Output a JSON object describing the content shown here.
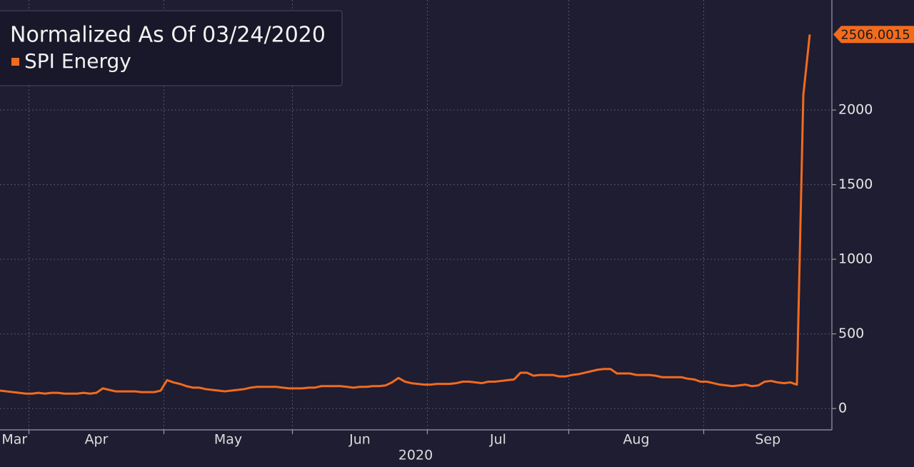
{
  "chart_data": {
    "type": "line",
    "legend_title": "Normalized As Of 03/24/2020",
    "xlabel": "2020",
    "categories": [
      "Mar",
      null,
      null,
      null,
      null,
      "Apr",
      null,
      null,
      null,
      null,
      null,
      null,
      null,
      null,
      null,
      null,
      null,
      null,
      null,
      null,
      null,
      null,
      null,
      null,
      null,
      null,
      "May",
      null,
      null,
      null,
      null,
      null,
      null,
      null,
      null,
      null,
      null,
      null,
      null,
      null,
      null,
      null,
      null,
      null,
      null,
      null,
      "Jun",
      null,
      null,
      null,
      null,
      null,
      null,
      null,
      null,
      null,
      null,
      null,
      null,
      null,
      null,
      null,
      null,
      null,
      null,
      null,
      null,
      "Jul",
      null,
      null,
      null,
      null,
      null,
      null,
      null,
      null,
      null,
      null,
      null,
      null,
      null,
      null,
      null,
      null,
      null,
      null,
      null,
      null,
      null,
      "Aug",
      null,
      null,
      null,
      null,
      null,
      null,
      null,
      null,
      null,
      null,
      null,
      null,
      null,
      null,
      null,
      null,
      null,
      null,
      null,
      null,
      "Sep",
      null,
      null,
      null,
      null,
      null,
      null,
      null,
      null,
      null,
      null,
      null,
      null,
      null,
      null,
      null,
      null
    ],
    "series": [
      {
        "name": "SPI Energy",
        "color": "#f26b1d",
        "values": [
          120,
          115,
          110,
          105,
          100,
          100,
          105,
          100,
          105,
          105,
          100,
          100,
          100,
          105,
          100,
          105,
          135,
          125,
          115,
          115,
          115,
          115,
          110,
          110,
          110,
          120,
          190,
          175,
          165,
          150,
          140,
          140,
          130,
          125,
          120,
          115,
          120,
          125,
          130,
          140,
          145,
          145,
          145,
          145,
          140,
          135,
          135,
          135,
          140,
          140,
          150,
          150,
          150,
          150,
          145,
          140,
          145,
          145,
          150,
          150,
          155,
          175,
          205,
          180,
          170,
          165,
          160,
          160,
          165,
          165,
          165,
          170,
          180,
          180,
          175,
          170,
          180,
          180,
          185,
          190,
          195,
          240,
          240,
          220,
          225,
          225,
          225,
          215,
          215,
          225,
          230,
          240,
          250,
          260,
          265,
          265,
          235,
          235,
          235,
          225,
          225,
          225,
          220,
          210,
          210,
          210,
          210,
          200,
          195,
          180,
          180,
          170,
          160,
          155,
          150,
          155,
          160,
          150,
          155,
          180,
          185,
          175,
          170,
          175,
          160,
          2100,
          2506.0015
        ]
      }
    ],
    "ylim": [
      -143,
      2737
    ],
    "yticks": [
      0,
      500,
      1000,
      1500,
      2000
    ],
    "grid": true
  }
}
